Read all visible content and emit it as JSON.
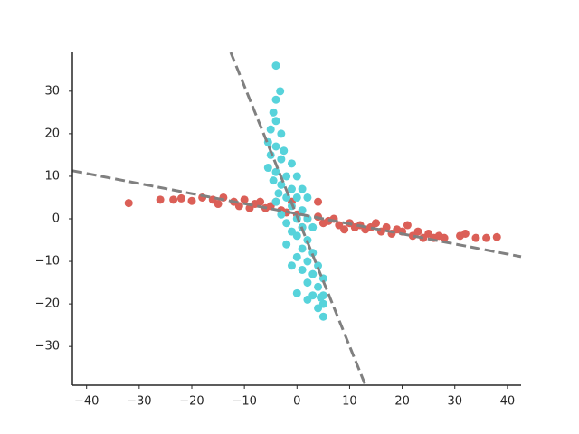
{
  "chart_data": {
    "type": "scatter",
    "xlim": [
      -42.7,
      42.6
    ],
    "ylim": [
      -39.1,
      39.1
    ],
    "xticks": [
      {
        "value": -40,
        "label": "−40"
      },
      {
        "value": -30,
        "label": "−30"
      },
      {
        "value": -20,
        "label": "−20"
      },
      {
        "value": -10,
        "label": "−10"
      },
      0,
      10,
      20,
      30,
      40
    ],
    "yticks": [
      {
        "value": -30,
        "label": "−30"
      },
      {
        "value": -20,
        "label": "−20"
      },
      {
        "value": -10,
        "label": "−10"
      },
      0,
      10,
      20,
      30
    ],
    "series": [
      {
        "type": "scatter",
        "color": "#db5f57",
        "x": [
          -32,
          -26,
          -23.5,
          -22,
          -20,
          -18,
          -16,
          -15,
          -14,
          -12,
          -11,
          -10,
          -9,
          -8,
          -7,
          -6,
          -5,
          -4,
          -3,
          -2,
          -1,
          0,
          1,
          2,
          4,
          4,
          5,
          6,
          7,
          8,
          9,
          10,
          11,
          12,
          13,
          14,
          15,
          16,
          17,
          18,
          19,
          20,
          21,
          22,
          23,
          24,
          25,
          26,
          27,
          28,
          31,
          32,
          34,
          36,
          38
        ],
        "values": [
          3.7,
          4.5,
          4.5,
          4.8,
          4.2,
          5,
          4.5,
          3.5,
          5,
          4,
          3,
          4.5,
          2.5,
          3.5,
          4,
          2.5,
          3,
          4,
          2,
          1.5,
          4,
          1,
          -2,
          0,
          0.5,
          4,
          -1,
          -0.5,
          0,
          -1.5,
          -2.5,
          -1,
          -2,
          -1.5,
          -2.5,
          -2,
          -1,
          -3,
          -2,
          -3.5,
          -2.5,
          -3,
          -1.5,
          -4,
          -3,
          -4.5,
          -3.5,
          -4.5,
          -4,
          -4.5,
          -4,
          -3.5,
          -4.5,
          -4.5,
          -4.3
        ]
      },
      {
        "type": "scatter",
        "color": "#57d3db",
        "x": [
          -4,
          -3.2,
          -4,
          -4.5,
          -4,
          -5,
          -3,
          -5.5,
          -4,
          -2.5,
          -5,
          -3,
          -1,
          -5.5,
          -4,
          -2,
          0,
          -4.5,
          -3,
          -1,
          1,
          -3.5,
          -2,
          0,
          2,
          -4,
          -1,
          1,
          -3,
          0,
          2,
          -2,
          1,
          3,
          -1,
          0,
          2,
          -2,
          1,
          3,
          0,
          2,
          4,
          1,
          3,
          5,
          2,
          4,
          3,
          0,
          5,
          2,
          5,
          4,
          5,
          4.5,
          -1
        ],
        "values": [
          36,
          30,
          28,
          25,
          23,
          21,
          20,
          18,
          17,
          16,
          15,
          14,
          13,
          12,
          11,
          10,
          10,
          9,
          8,
          7,
          7,
          6,
          5,
          5,
          5,
          4,
          3,
          2,
          1,
          0,
          0,
          -1,
          -2,
          -2,
          -3,
          -4,
          -5,
          -6,
          -7,
          -8,
          -9,
          -10,
          -11,
          -12,
          -13,
          -14,
          -15,
          -16,
          -18,
          -17.5,
          -18,
          -19,
          -20,
          -21,
          -23,
          -18.5,
          -11
        ]
      },
      {
        "type": "line",
        "color": "#808080",
        "linestyle": "dashed",
        "x": [
          -42.7,
          42.6
        ],
        "values": [
          11.3,
          -8.9
        ]
      },
      {
        "type": "line",
        "color": "#808080",
        "linestyle": "dashed",
        "x": [
          -12.6,
          13.0
        ],
        "values": [
          39.1,
          -39.1
        ]
      }
    ]
  }
}
